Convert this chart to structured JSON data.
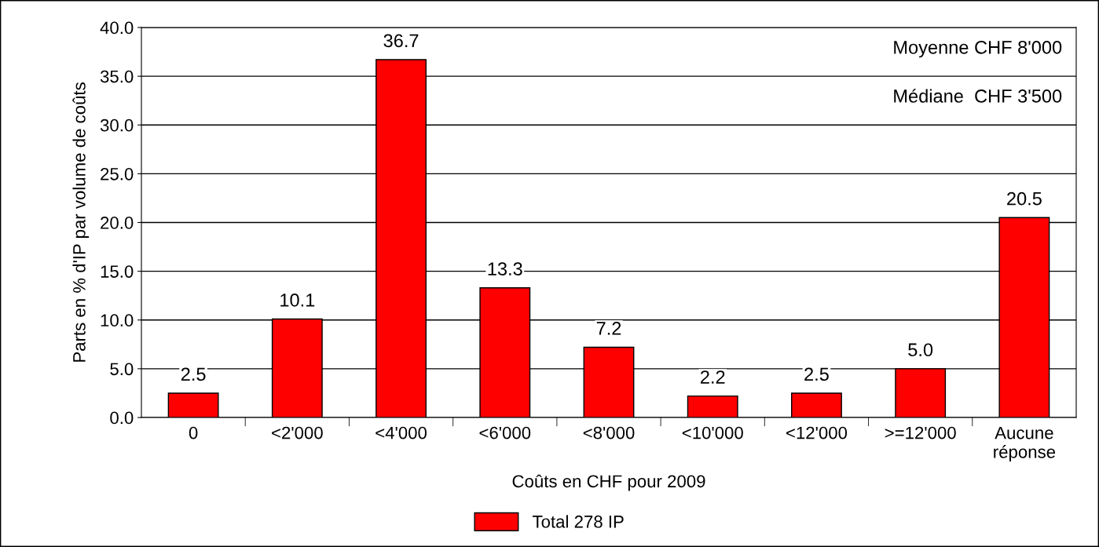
{
  "chart_data": {
    "type": "bar",
    "xlabel": "Coûts en CHF pour 2009",
    "ylabel": "Parts en % d'IP par volume de coûts",
    "categories": [
      "0",
      "<2'000",
      "<4'000",
      "<6'000",
      "<8'000",
      "<10'000",
      "<12'000",
      ">=12'000",
      "Aucune\nréponse"
    ],
    "series": [
      {
        "name": "Total 278 IP",
        "color": "#ff0000",
        "values": [
          2.5,
          10.1,
          36.7,
          13.3,
          7.2,
          2.2,
          2.5,
          5.0,
          20.5
        ],
        "value_labels": [
          "2.5",
          "10.1",
          "36.7",
          "13.3",
          "7.2",
          "2.2",
          "2.5",
          "5.0",
          "20.5"
        ]
      }
    ],
    "ylim": [
      0,
      40
    ],
    "yticks": [
      {
        "value": 0,
        "label": "0.0"
      },
      {
        "value": 5,
        "label": "5.0"
      },
      {
        "value": 10,
        "label": "10.0"
      },
      {
        "value": 15,
        "label": "15.0"
      },
      {
        "value": 20,
        "label": "20.0"
      },
      {
        "value": 25,
        "label": "25.0"
      },
      {
        "value": 30,
        "label": "30.0"
      },
      {
        "value": 35,
        "label": "35.0"
      },
      {
        "value": 40,
        "label": "40.0"
      }
    ],
    "grid": "y",
    "legend": "bottom",
    "annotations": [
      "Moyenne CHF 8'000",
      "Médiane  CHF 3'500"
    ]
  }
}
